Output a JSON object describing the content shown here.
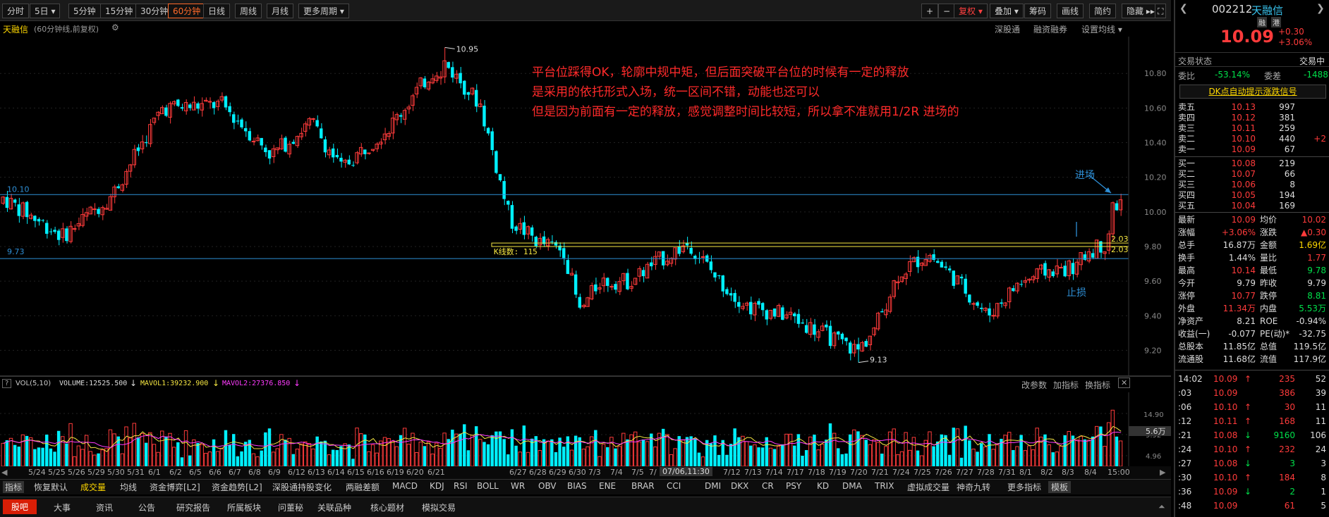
{
  "toolbar": {
    "periods": [
      "分时",
      "5日",
      "5分钟",
      "15分钟",
      "30分钟",
      "60分钟",
      "日线",
      "周线",
      "月线",
      "更多周期"
    ],
    "active": "60分钟",
    "right": [
      "复权",
      "叠加",
      "筹码",
      "画线",
      "简约",
      "隐藏"
    ],
    "icons": [
      "+",
      "−"
    ]
  },
  "stock": {
    "name": "天融信",
    "code": "002212",
    "period_desc": "(60分钟线,前复权)",
    "badges": [
      "融",
      "港"
    ],
    "price": "10.09",
    "change": "+0.30",
    "change_pct": "+3.06%"
  },
  "chart_header_right": [
    "深股通",
    "融资融券",
    "设置均线"
  ],
  "price_axis": {
    "ticks": [
      "10.80",
      "10.60",
      "10.40",
      "10.20",
      "10.00",
      "9.80",
      "9.60",
      "9.40",
      "9.20"
    ]
  },
  "chart_labels": {
    "high": "10.95",
    "low": "9.13",
    "line_upper": "10.10",
    "line_lower": "9.73",
    "count_label": "K线数: 115",
    "right_val1": "2.03",
    "right_val2": "2.03"
  },
  "annotations": {
    "line1": "平台位踩得OK，轮廓中规中矩，但后面突破平台位的时候有一定的释放",
    "line2": "是采用的依托形式入场，统一区间不错，动能也还可以",
    "line3": "但是因为前面有一定的释放，感觉调整时间比较短，所以拿不准就用1/2R 进场的",
    "entry": "进场",
    "stop": "止损"
  },
  "chart_data": {
    "type": "candlestick",
    "ylim": [
      9.1,
      10.98
    ],
    "high": 10.95,
    "low": 9.13,
    "levels": [
      10.1,
      9.73
    ],
    "zone": [
      9.82,
      9.8
    ]
  },
  "volume": {
    "title": "VOL(5,10)",
    "volume_label": "VOLUME:12525.500",
    "mavol1": "MAVOL1:39232.900",
    "mavol2": "MAVOL2:27376.850",
    "ticks": [
      "14.90",
      "9.92",
      "4.96"
    ],
    "unit": "5.6万",
    "buttons": [
      "改参数",
      "加指标",
      "换指标"
    ]
  },
  "dates": [
    "5/24",
    "5/25",
    "5/26",
    "5/29",
    "5/30",
    "5/31",
    "6/1",
    "6/2",
    "6/5",
    "6/6",
    "6/7",
    "6/8",
    "6/9",
    "6/12",
    "6/13",
    "6/14",
    "6/15",
    "6/16",
    "6/19",
    "6/20",
    "6/21",
    "6/27",
    "6/28",
    "6/29",
    "6/30",
    "7/3",
    "7/4",
    "7/5",
    "7/",
    "7/12",
    "7/13",
    "7/14",
    "7/17",
    "7/18",
    "7/19",
    "7/20",
    "7/21",
    "7/24",
    "7/25",
    "7/26",
    "7/27",
    "7/28",
    "7/31",
    "8/1",
    "8/2",
    "8/3",
    "8/4",
    "15:00"
  ],
  "date_cursor": "07/06,11:30",
  "indicator_tabs": [
    "指标",
    "恢复默认",
    "成交量",
    "均线",
    "资金博弈[L2]",
    "资金趋势[L2]",
    "深股通持股变化",
    "两融差额",
    "MACD",
    "KDJ",
    "RSI",
    "BOLL",
    "WR",
    "OBV",
    "BIAS",
    "ENE",
    "BRAR",
    "CCI",
    "DMI",
    "DKX",
    "CR",
    "PSY",
    "KD",
    "DMA",
    "TRIX",
    "虚拟成交量",
    "神奇九转",
    "更多指标",
    "模板"
  ],
  "bottom_nav": [
    "股吧",
    "大事",
    "资讯",
    "公告",
    "研究报告",
    "所属板块",
    "问董秘",
    "关联品种",
    "核心题材",
    "模拟交易"
  ],
  "right_panel": {
    "status_label": "交易状态",
    "status_value": "交易中",
    "weibi": {
      "label": "委比",
      "value": "-53.14%",
      "label2": "委差",
      "value2": "-1488"
    },
    "signal": "DK点自动提示涨跌信号",
    "asks": [
      {
        "label": "卖五",
        "price": "10.13",
        "vol": "997",
        "chg": ""
      },
      {
        "label": "卖四",
        "price": "10.12",
        "vol": "381",
        "chg": ""
      },
      {
        "label": "卖三",
        "price": "10.11",
        "vol": "259",
        "chg": ""
      },
      {
        "label": "卖二",
        "price": "10.10",
        "vol": "440",
        "chg": "+2"
      },
      {
        "label": "卖一",
        "price": "10.09",
        "vol": "67",
        "chg": ""
      }
    ],
    "bids": [
      {
        "label": "买一",
        "price": "10.08",
        "vol": "219"
      },
      {
        "label": "买二",
        "price": "10.07",
        "vol": "66"
      },
      {
        "label": "买三",
        "price": "10.06",
        "vol": "8"
      },
      {
        "label": "买四",
        "price": "10.05",
        "vol": "194"
      },
      {
        "label": "买五",
        "price": "10.04",
        "vol": "169"
      }
    ],
    "stats": [
      {
        "l1": "最新",
        "v1": "10.09",
        "c1": "r",
        "l2": "均价",
        "v2": "10.02",
        "c2": "r"
      },
      {
        "l1": "涨幅",
        "v1": "+3.06%",
        "c1": "r",
        "l2": "涨跌",
        "v2": "▲0.30",
        "c2": "r"
      },
      {
        "l1": "总手",
        "v1": "16.87万",
        "c1": "w",
        "l2": "金额",
        "v2": "1.69亿",
        "c2": "y"
      },
      {
        "l1": "换手",
        "v1": "1.44%",
        "c1": "w",
        "l2": "量比",
        "v2": "1.77",
        "c2": "r"
      },
      {
        "l1": "最高",
        "v1": "10.14",
        "c1": "r",
        "l2": "最低",
        "v2": "9.78",
        "c2": "g"
      },
      {
        "l1": "今开",
        "v1": "9.79",
        "c1": "w",
        "l2": "昨收",
        "v2": "9.79",
        "c2": "w"
      },
      {
        "l1": "涨停",
        "v1": "10.77",
        "c1": "r",
        "l2": "跌停",
        "v2": "8.81",
        "c2": "g"
      },
      {
        "l1": "外盘",
        "v1": "11.34万",
        "c1": "r",
        "l2": "内盘",
        "v2": "5.53万",
        "c2": "g"
      },
      {
        "l1": "净资产",
        "v1": "8.21",
        "c1": "w",
        "l2": "ROE",
        "v2": "-0.94%",
        "c2": "w"
      },
      {
        "l1": "收益(一)",
        "v1": "-0.077",
        "c1": "w",
        "l2": "PE(动)*",
        "v2": "-32.75",
        "c2": "w"
      },
      {
        "l1": "总股本",
        "v1": "11.85亿",
        "c1": "w",
        "l2": "总值",
        "v2": "119.5亿",
        "c2": "w"
      },
      {
        "l1": "流通股",
        "v1": "11.68亿",
        "c1": "w",
        "l2": "流值",
        "v2": "117.9亿",
        "c2": "w"
      }
    ],
    "ticks": [
      {
        "t": "14:02",
        "p": "10.09",
        "a": "↑",
        "v": "235",
        "n": "52",
        "c": "r"
      },
      {
        "t": ":03",
        "p": "10.09",
        "a": "",
        "v": "386",
        "n": "39",
        "c": "r"
      },
      {
        "t": ":06",
        "p": "10.10",
        "a": "↑",
        "v": "30",
        "n": "11",
        "c": "r"
      },
      {
        "t": ":12",
        "p": "10.11",
        "a": "↑",
        "v": "168",
        "n": "11",
        "c": "r"
      },
      {
        "t": ":21",
        "p": "10.08",
        "a": "↓",
        "v": "9160",
        "n": "106",
        "c": "g"
      },
      {
        "t": ":24",
        "p": "10.10",
        "a": "↑",
        "v": "232",
        "n": "24",
        "c": "r"
      },
      {
        "t": ":27",
        "p": "10.08",
        "a": "↓",
        "v": "3",
        "n": "3",
        "c": "g"
      },
      {
        "t": ":30",
        "p": "10.10",
        "a": "↑",
        "v": "184",
        "n": "8",
        "c": "r"
      },
      {
        "t": ":36",
        "p": "10.09",
        "a": "↓",
        "v": "2",
        "n": "1",
        "c": "g"
      },
      {
        "t": ":48",
        "p": "10.09",
        "a": "",
        "v": "61",
        "n": "5",
        "c": "r"
      }
    ]
  },
  "colors": {
    "up": "#ff3b3b",
    "down": "#00f0ff",
    "level": "#2e8fd6",
    "zone": "#f5e642",
    "annotation": "#ff2a2a",
    "ma1": "#f5e642",
    "ma2": "#ff3bff"
  }
}
